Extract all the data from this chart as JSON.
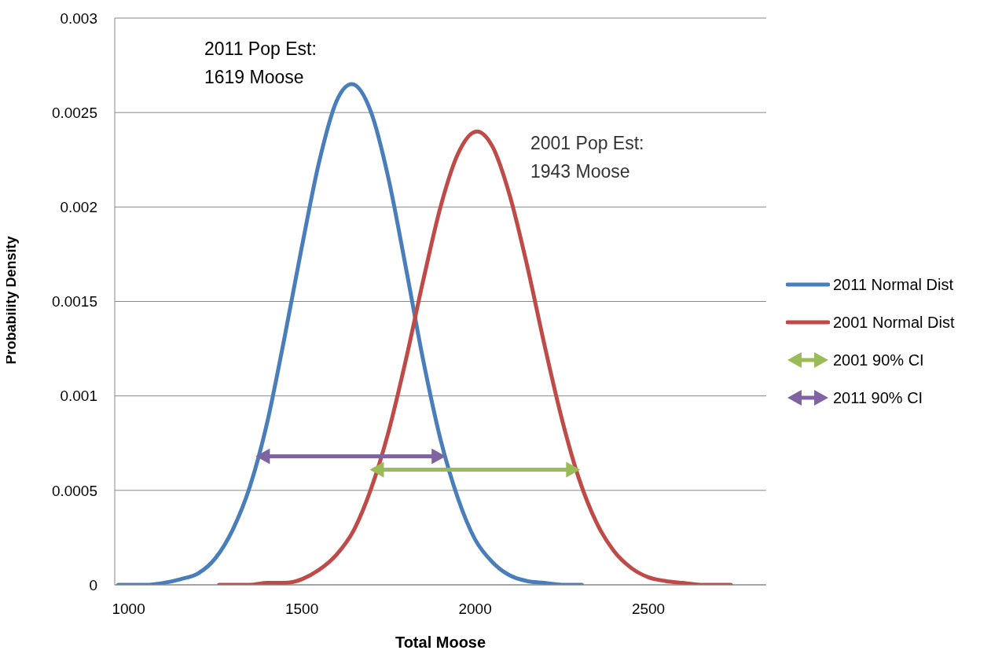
{
  "chart_data": {
    "type": "line",
    "xlabel": "Total Moose",
    "ylabel": "Probability Density",
    "xlim": [
      960,
      2840
    ],
    "xticks": [
      1000,
      1500,
      2000,
      2500
    ],
    "ylim": [
      0,
      0.003
    ],
    "yticks": [
      0,
      0.0005,
      0.001,
      0.0015,
      0.002,
      0.0025,
      0.003
    ],
    "grid": "y",
    "legend": "right",
    "marker": "none",
    "line_style": "solid",
    "annotations": [
      "2011 Pop Est:\n1619 Moose",
      "2001 Pop Est:\n1943 Moose"
    ],
    "series": [
      {
        "name": "2011 Normal Dist",
        "color": "#4a7ebb",
        "x": [
          970,
          1050,
          1100,
          1150,
          1200,
          1250,
          1300,
          1350,
          1400,
          1450,
          1500,
          1550,
          1600,
          1644,
          1700,
          1750,
          1800,
          1850,
          1900,
          1950,
          2000,
          2050,
          2100,
          2150,
          2200,
          2250,
          2308
        ],
        "values": [
          0,
          0,
          1e-05,
          3e-05,
          6e-05,
          0.00014,
          0.00029,
          0.00052,
          0.00086,
          0.00131,
          0.00179,
          0.00224,
          0.00256,
          0.00265,
          0.0025,
          0.00215,
          0.00168,
          0.00119,
          0.00077,
          0.00046,
          0.00024,
          0.00012,
          5e-05,
          2e-05,
          1e-05,
          0,
          0
        ]
      },
      {
        "name": "2001 Normal Dist",
        "color": "#be4b48",
        "x": [
          1261,
          1300,
          1350,
          1400,
          1450,
          1500,
          1550,
          1600,
          1650,
          1700,
          1750,
          1800,
          1850,
          1900,
          1950,
          2005,
          2050,
          2100,
          2150,
          2200,
          2250,
          2300,
          2350,
          2400,
          2450,
          2500,
          2550,
          2600,
          2650,
          2738
        ],
        "values": [
          0,
          0,
          0,
          1e-05,
          1e-05,
          3e-05,
          8e-05,
          0.00016,
          0.00029,
          0.00051,
          0.00081,
          0.00119,
          0.00161,
          0.002,
          0.00228,
          0.0024,
          0.00232,
          0.00206,
          0.00169,
          0.00127,
          0.00088,
          0.00056,
          0.00033,
          0.00018,
          9e-05,
          4e-05,
          2e-05,
          1e-05,
          0,
          0
        ]
      },
      {
        "name": "2001 90% CI",
        "color": "#9bbb59",
        "marker": "triangle",
        "x": [
          1723,
          2276
        ],
        "values": [
          0.00061,
          0.00061
        ]
      },
      {
        "name": "2011 90% CI",
        "color": "#8064a2",
        "marker": "triangle",
        "x": [
          1394,
          1888
        ],
        "values": [
          0.00068,
          0.00068
        ]
      }
    ]
  }
}
